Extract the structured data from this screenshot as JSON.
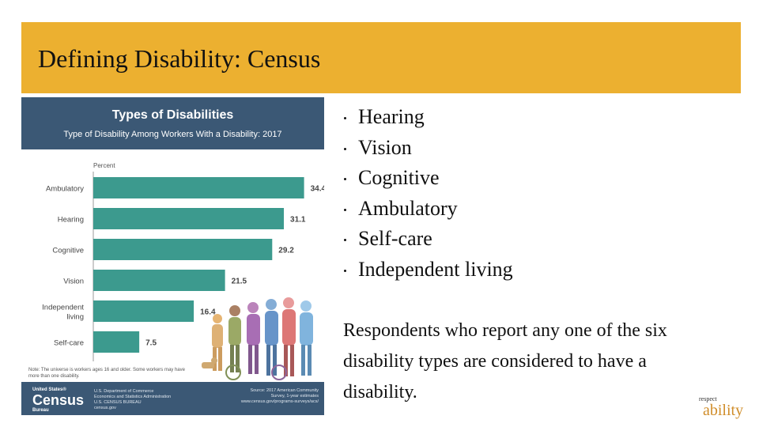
{
  "slide": {
    "title": "Defining Disability: Census",
    "bullets": [
      "Hearing",
      "Vision",
      "Cognitive",
      "Ambulatory",
      "Self-care",
      "Independent living"
    ],
    "paragraph": "Respondents who report any one of the six disability types are considered to have a disability.",
    "logo": {
      "top": "respect",
      "bottom": "ability"
    }
  },
  "infographic": {
    "title": "Types of Disabilities",
    "subtitle": "Type of Disability Among Workers With a Disability: 2017",
    "note": "Note: The universe is workers ages 16 and older. Some workers may have more than one disability.",
    "footer": {
      "logo_top": "United States®",
      "logo_main": "Census",
      "logo_bottom": "Bureau",
      "agency": [
        "U.S. Department of Commerce",
        "Economics and Statistics Administration",
        "U.S. CENSUS BUREAU",
        "census.gov"
      ],
      "source": [
        "Source: 2017 American Community",
        "Survey, 1-year estimates",
        "www.census.gov/programs-surveys/acs/"
      ]
    },
    "colors": {
      "header": "#3b5875",
      "bar": "#3c9a8e",
      "title_bar": "#ecb030"
    }
  },
  "chart_data": {
    "type": "bar",
    "orientation": "horizontal",
    "title": "Types of Disabilities",
    "subtitle": "Type of Disability Among Workers With a Disability: 2017",
    "xlabel": "Percent",
    "ylabel": "",
    "xlim": [
      0,
      40
    ],
    "categories": [
      "Ambulatory",
      "Hearing",
      "Cognitive",
      "Vision",
      "Independent living",
      "Self-care"
    ],
    "values": [
      34.4,
      31.1,
      29.2,
      21.5,
      16.4,
      7.5
    ],
    "value_labels": [
      "34.4",
      "31.1",
      "29.2",
      "21.5",
      "16.4",
      "7.5"
    ]
  }
}
